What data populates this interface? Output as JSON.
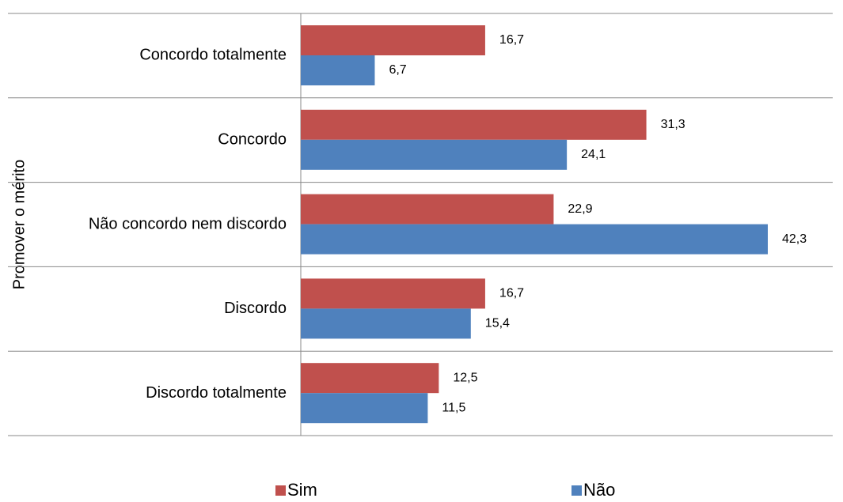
{
  "chart_data": {
    "type": "bar",
    "orientation": "horizontal",
    "y_label": "Promover o mérito",
    "categories": [
      "Concordo totalmente",
      "Concordo",
      "Não concordo nem discordo",
      "Discordo",
      "Discordo totalmente"
    ],
    "series": [
      {
        "name": "Sim",
        "color": "#c0504d",
        "values": [
          16.7,
          31.3,
          22.9,
          16.7,
          12.5
        ],
        "value_labels": [
          "16,7",
          "31,3",
          "22,9",
          "16,7",
          "12,5"
        ]
      },
      {
        "name": "Não",
        "color": "#4f81bd",
        "values": [
          6.7,
          24.1,
          42.3,
          15.4,
          11.5
        ],
        "value_labels": [
          "6,7",
          "24,1",
          "42,3",
          "15,4",
          "11,5"
        ]
      }
    ]
  }
}
